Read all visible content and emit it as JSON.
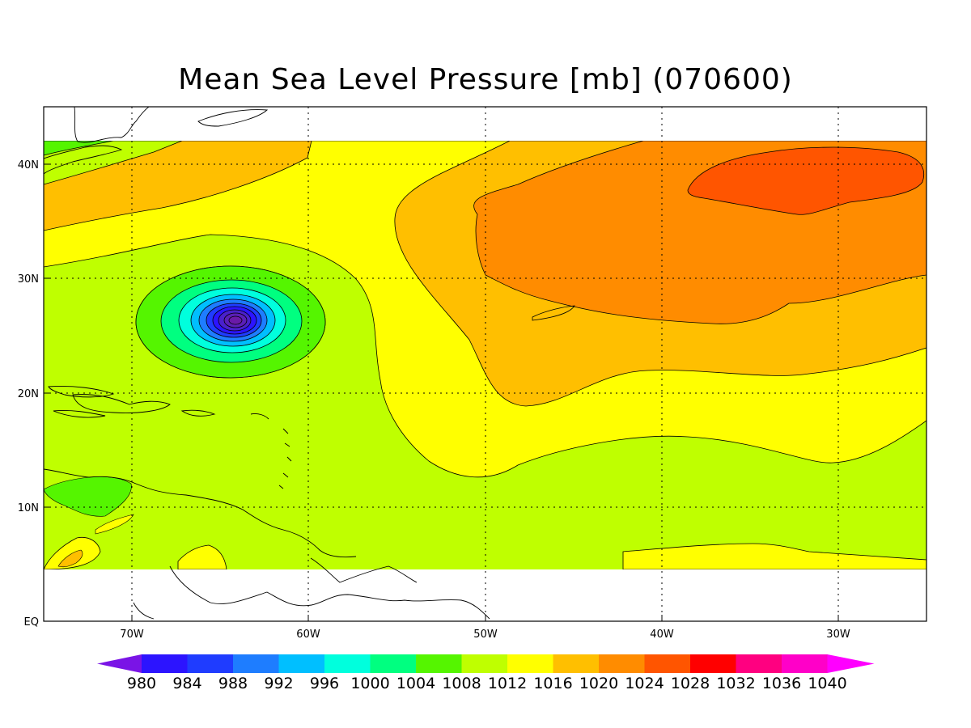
{
  "title": "Mean Sea Level Pressure [mb] (070600)",
  "axes": {
    "lon_labels": [
      "70W",
      "60W",
      "50W",
      "40W",
      "30W"
    ],
    "lat_labels": [
      "EQ",
      "10N",
      "20N",
      "30N",
      "40N"
    ],
    "grid": "dotted"
  },
  "chart_data": {
    "type": "heatmap",
    "variable": "Mean Sea Level Pressure",
    "units": "mb",
    "time_code": "070600",
    "lon_range": [
      -75,
      -25
    ],
    "lat_range": [
      0,
      45
    ],
    "data_lat_range": [
      4,
      42
    ],
    "low_center": {
      "lon": -64.2,
      "lat": 26.3,
      "min_level": 980
    },
    "high_center": {
      "lon": -36,
      "lat": 38,
      "max_level": 1028
    },
    "contour_levels": [
      980,
      984,
      988,
      992,
      996,
      1000,
      1004,
      1008,
      1012,
      1016,
      1020,
      1024,
      1028,
      1032,
      1036,
      1040
    ]
  },
  "colorbar": {
    "labels": [
      "980",
      "984",
      "988",
      "992",
      "996",
      "1000",
      "1004",
      "1008",
      "1012",
      "1016",
      "1020",
      "1024",
      "1028",
      "1032",
      "1036",
      "1040"
    ],
    "colors": [
      "#7a14e6",
      "#2c14ff",
      "#1f3cff",
      "#1e7dff",
      "#00bfff",
      "#00ffdd",
      "#00ff80",
      "#55f500",
      "#bfff00",
      "#ffff00",
      "#ffbf00",
      "#ff8c00",
      "#ff5500",
      "#ff0000",
      "#ff0080",
      "#ff00c8",
      "#ff00ff"
    ]
  }
}
